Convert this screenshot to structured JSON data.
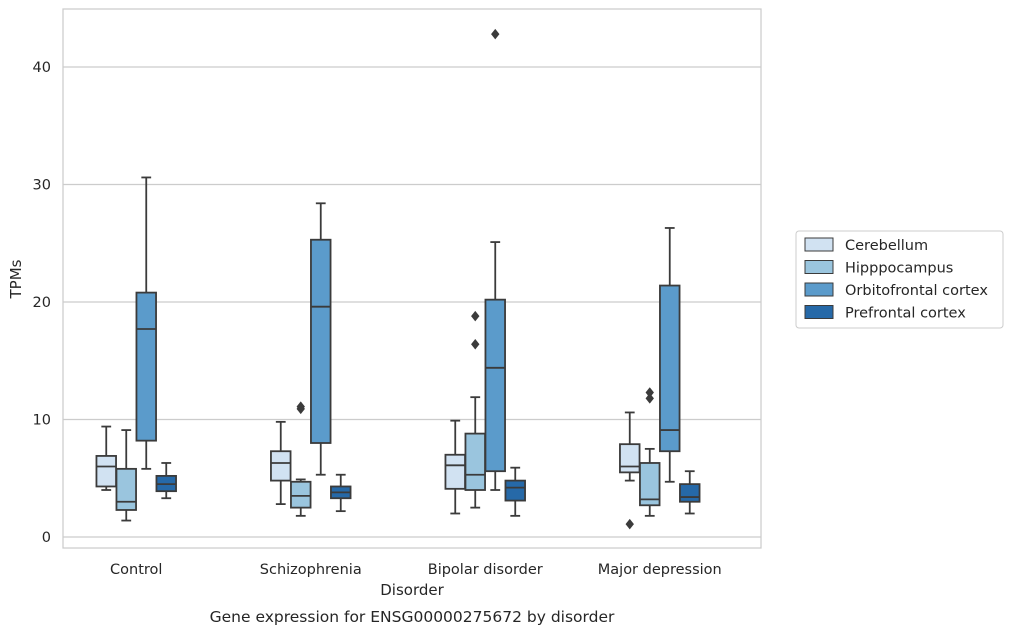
{
  "chart_data": {
    "type": "box",
    "caption": "Gene expression for ENSG00000275672 by disorder",
    "xlabel": "Disorder",
    "ylabel": "TPMs",
    "ylim": [
      -1,
      45
    ],
    "yticks": [
      0,
      10,
      20,
      30,
      40
    ],
    "grid": true,
    "legend_placement": "right",
    "categories": [
      "Control",
      "Schizophrenia",
      "Bipolar disorder",
      "Major depression"
    ],
    "series": [
      {
        "name": "Cerebellum",
        "color": "#d1e2f2",
        "boxes": [
          {
            "whislo": 4.0,
            "q1": 4.3,
            "med": 6.0,
            "q3": 6.9,
            "whishi": 9.4,
            "fliers": []
          },
          {
            "whislo": 2.8,
            "q1": 4.8,
            "med": 6.3,
            "q3": 7.3,
            "whishi": 9.8,
            "fliers": []
          },
          {
            "whislo": 2.0,
            "q1": 4.1,
            "med": 6.1,
            "q3": 7.0,
            "whishi": 9.9,
            "fliers": []
          },
          {
            "whislo": 4.8,
            "q1": 5.5,
            "med": 6.0,
            "q3": 7.9,
            "whishi": 10.6,
            "fliers": [
              1.1
            ]
          }
        ]
      },
      {
        "name": "Hipppocampus",
        "color": "#9ac5de",
        "boxes": [
          {
            "whislo": 1.4,
            "q1": 2.3,
            "med": 3.0,
            "q3": 5.8,
            "whishi": 9.1,
            "fliers": []
          },
          {
            "whislo": 1.8,
            "q1": 2.5,
            "med": 3.5,
            "q3": 4.7,
            "whishi": 4.9,
            "fliers": [
              10.9,
              11.1
            ]
          },
          {
            "whislo": 2.5,
            "q1": 4.0,
            "med": 5.3,
            "q3": 8.8,
            "whishi": 11.9,
            "fliers": [
              16.4,
              18.8
            ]
          },
          {
            "whislo": 1.8,
            "q1": 2.7,
            "med": 3.2,
            "q3": 6.3,
            "whishi": 7.5,
            "fliers": [
              11.8,
              12.3
            ]
          }
        ]
      },
      {
        "name": "Orbitofrontal cortex",
        "color": "#5b9bcb",
        "boxes": [
          {
            "whislo": 5.8,
            "q1": 8.2,
            "med": 17.7,
            "q3": 20.8,
            "whishi": 30.6,
            "fliers": []
          },
          {
            "whislo": 5.3,
            "q1": 8.0,
            "med": 19.6,
            "q3": 25.3,
            "whishi": 28.4,
            "fliers": []
          },
          {
            "whislo": 4.0,
            "q1": 5.6,
            "med": 14.4,
            "q3": 20.2,
            "whishi": 25.1,
            "fliers": [
              42.8
            ]
          },
          {
            "whislo": 4.7,
            "q1": 7.3,
            "med": 9.1,
            "q3": 21.4,
            "whishi": 26.3,
            "fliers": []
          }
        ]
      },
      {
        "name": "Prefrontal cortex",
        "color": "#2669a8",
        "boxes": [
          {
            "whislo": 3.3,
            "q1": 3.9,
            "med": 4.5,
            "q3": 5.2,
            "whishi": 6.3,
            "fliers": []
          },
          {
            "whislo": 2.2,
            "q1": 3.3,
            "med": 3.8,
            "q3": 4.3,
            "whishi": 5.3,
            "fliers": []
          },
          {
            "whislo": 1.8,
            "q1": 3.1,
            "med": 4.2,
            "q3": 4.8,
            "whishi": 5.9,
            "fliers": []
          },
          {
            "whislo": 2.0,
            "q1": 3.0,
            "med": 3.4,
            "q3": 4.5,
            "whishi": 5.6,
            "fliers": []
          }
        ]
      }
    ]
  }
}
